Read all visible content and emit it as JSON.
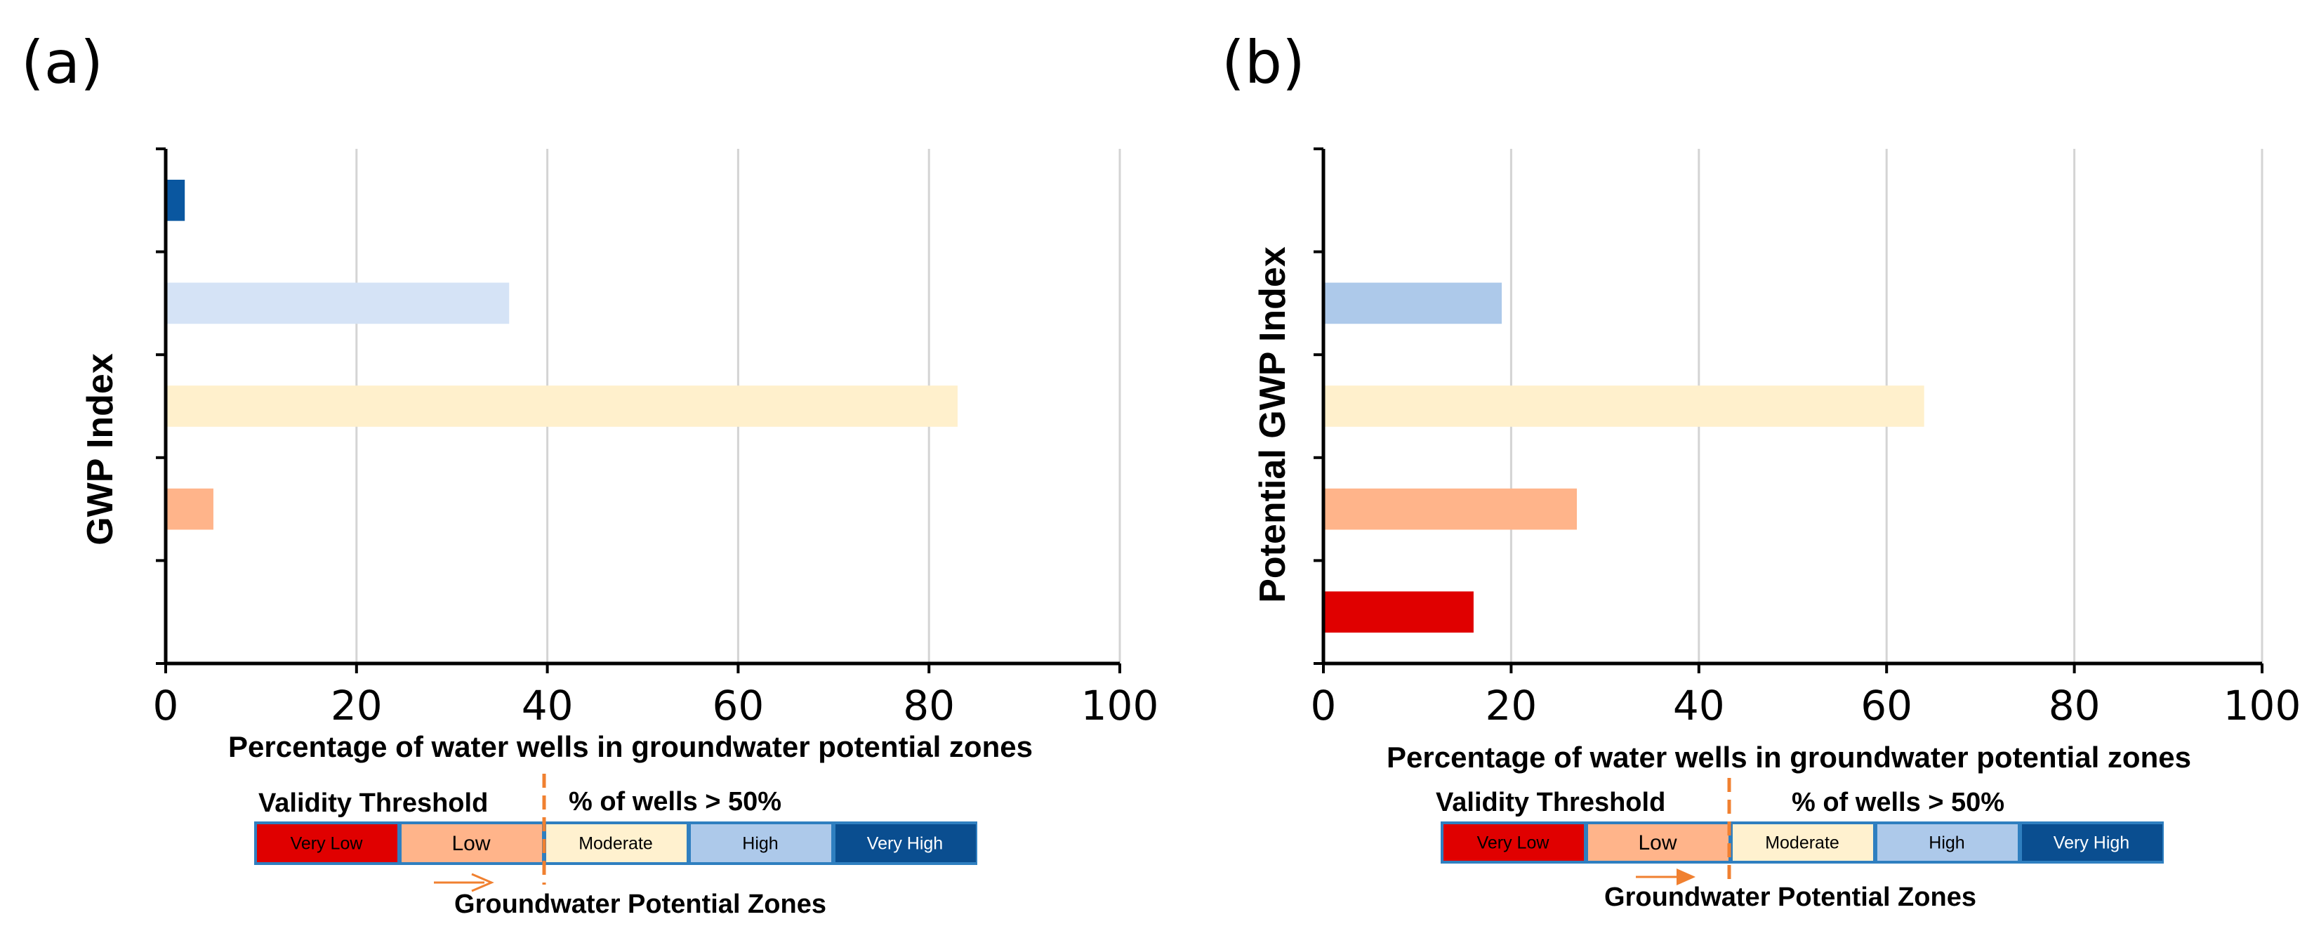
{
  "chart_data": [
    {
      "type": "bar",
      "orientation": "horizontal",
      "panel": "(a)",
      "ylabel": "GWP Index",
      "xlabel": "Percentage of water wells in groundwater potential zones",
      "xlim": [
        0,
        100
      ],
      "xticks": [
        "0",
        "20",
        "40",
        "60",
        "80",
        "100"
      ],
      "grid": true,
      "categories": [
        "Very Low",
        "Low",
        "Moderate",
        "High",
        "Very High"
      ],
      "values": [
        0,
        5,
        83,
        36,
        2
      ],
      "colors": [
        "#e00000",
        "#ffb48a",
        "#fff0cc",
        "#d5e3f6",
        "#0a57a0"
      ],
      "legend": {
        "validity_threshold": "Validity Threshold",
        "wells_label": "% of wells > 50%",
        "zones": [
          "Very Low",
          "Low",
          "Moderate",
          "High",
          "Very High"
        ],
        "zone_fills": [
          "#e00000",
          "#ffb48a",
          "#fff1cf",
          "#adc9ea",
          "#0a4e90"
        ],
        "zone_text_colors": [
          "#000000",
          "#000000",
          "#000000",
          "#000000",
          "#ffffff"
        ],
        "caption": "Groundwater Potential Zones",
        "threshold_color": "#f08030"
      }
    },
    {
      "type": "bar",
      "orientation": "horizontal",
      "panel": "(b)",
      "ylabel": "Potential GWP Index",
      "xlabel": "Percentage of water wells in groundwater potential zones",
      "xlim": [
        0,
        100
      ],
      "xticks": [
        "0",
        "20",
        "40",
        "60",
        "80",
        "100"
      ],
      "grid": true,
      "categories": [
        "Very Low",
        "Low",
        "Moderate",
        "High",
        "Very High"
      ],
      "values": [
        16,
        27,
        64,
        19,
        0
      ],
      "colors": [
        "#e00000",
        "#ffb48a",
        "#fff0cc",
        "#adc9ea",
        "#0a57a0"
      ],
      "legend": {
        "validity_threshold": "Validity Threshold",
        "wells_label": "% of wells > 50%",
        "zones": [
          "Very Low",
          "Low",
          "Moderate",
          "High",
          "Very High"
        ],
        "zone_fills": [
          "#e00000",
          "#ffb48a",
          "#fff1cf",
          "#adc9ea",
          "#0a4e90"
        ],
        "zone_text_colors": [
          "#000000",
          "#000000",
          "#000000",
          "#000000",
          "#ffffff"
        ],
        "caption": "Groundwater Potential Zones",
        "threshold_color": "#f08030"
      }
    }
  ]
}
